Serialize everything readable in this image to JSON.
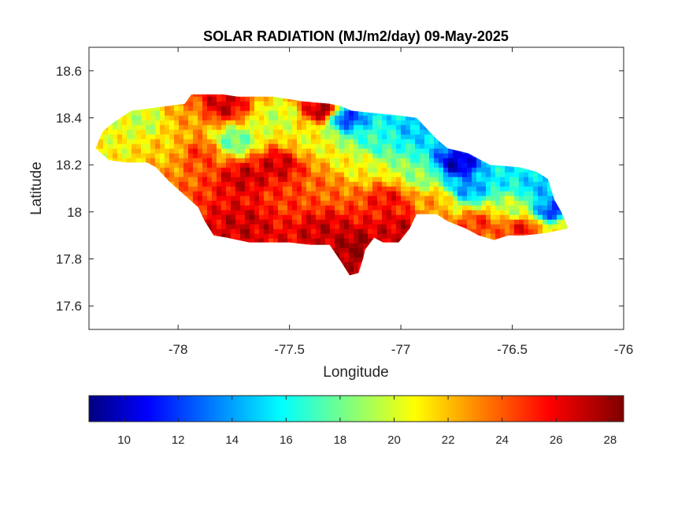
{
  "chart_data": {
    "type": "heatmap",
    "title": "SOLAR RADIATION (MJ/m2/day) 09-May-2025",
    "xlabel": "Longitude",
    "ylabel": "Latitude",
    "xlim": [
      -78.4,
      -76
    ],
    "ylim": [
      17.5,
      18.7
    ],
    "xticks": [
      -78,
      -77.5,
      -77,
      -76.5,
      -76
    ],
    "xtick_labels": [
      "-78",
      "-77.5",
      "-77",
      "-76.5",
      "-76"
    ],
    "yticks": [
      18.6,
      18.4,
      18.2,
      18,
      17.8,
      17.6
    ],
    "ytick_labels": [
      "18.6",
      "18.4",
      "18.2",
      "18",
      "17.8",
      "17.6"
    ],
    "grid": false,
    "colormap": "jet",
    "clim": [
      8.7,
      28.5
    ],
    "colorbar": {
      "location": "southoutside",
      "ticks": [
        10,
        12,
        14,
        16,
        18,
        20,
        22,
        24,
        26,
        28
      ],
      "tick_labels": [
        "10",
        "12",
        "14",
        "16",
        "18",
        "20",
        "22",
        "24",
        "26",
        "28"
      ]
    },
    "outline": [
      [
        -78.37,
        18.27
      ],
      [
        -78.34,
        18.34
      ],
      [
        -78.29,
        18.38
      ],
      [
        -78.21,
        18.43
      ],
      [
        -78.13,
        18.44
      ],
      [
        -78.05,
        18.45
      ],
      [
        -77.97,
        18.46
      ],
      [
        -77.94,
        18.5
      ],
      [
        -77.8,
        18.5
      ],
      [
        -77.73,
        18.49
      ],
      [
        -77.57,
        18.49
      ],
      [
        -77.44,
        18.47
      ],
      [
        -77.32,
        18.46
      ],
      [
        -77.27,
        18.45
      ],
      [
        -77.22,
        18.43
      ],
      [
        -77.12,
        18.42
      ],
      [
        -77.01,
        18.41
      ],
      [
        -76.93,
        18.4
      ],
      [
        -76.89,
        18.36
      ],
      [
        -76.84,
        18.31
      ],
      [
        -76.79,
        18.27
      ],
      [
        -76.7,
        18.25
      ],
      [
        -76.6,
        18.2
      ],
      [
        -76.47,
        18.19
      ],
      [
        -76.39,
        18.17
      ],
      [
        -76.34,
        18.14
      ],
      [
        -76.31,
        18.05
      ],
      [
        -76.28,
        18.0
      ],
      [
        -76.25,
        17.93
      ],
      [
        -76.35,
        17.91
      ],
      [
        -76.45,
        17.9
      ],
      [
        -76.52,
        17.9
      ],
      [
        -76.58,
        17.88
      ],
      [
        -76.65,
        17.9
      ],
      [
        -76.71,
        17.93
      ],
      [
        -76.79,
        17.96
      ],
      [
        -76.84,
        17.99
      ],
      [
        -76.93,
        17.99
      ],
      [
        -76.96,
        17.93
      ],
      [
        -77.01,
        17.87
      ],
      [
        -77.08,
        17.87
      ],
      [
        -77.12,
        17.89
      ],
      [
        -77.16,
        17.84
      ],
      [
        -77.17,
        17.8
      ],
      [
        -77.19,
        17.74
      ],
      [
        -77.23,
        17.73
      ],
      [
        -77.27,
        17.79
      ],
      [
        -77.32,
        17.86
      ],
      [
        -77.41,
        17.86
      ],
      [
        -77.5,
        17.87
      ],
      [
        -77.59,
        17.87
      ],
      [
        -77.68,
        17.87
      ],
      [
        -77.78,
        17.89
      ],
      [
        -77.84,
        17.9
      ],
      [
        -77.88,
        17.96
      ],
      [
        -77.91,
        18.02
      ],
      [
        -77.97,
        18.07
      ],
      [
        -78.04,
        18.13
      ],
      [
        -78.1,
        18.19
      ],
      [
        -78.14,
        18.21
      ],
      [
        -78.23,
        18.21
      ],
      [
        -78.31,
        18.22
      ]
    ],
    "value_centers": [
      {
        "lon": -78.3,
        "lat": 18.3,
        "value": 21
      },
      {
        "lon": -78.15,
        "lat": 18.38,
        "value": 20
      },
      {
        "lon": -78.05,
        "lat": 18.28,
        "value": 22
      },
      {
        "lon": -77.95,
        "lat": 18.4,
        "value": 23
      },
      {
        "lon": -77.9,
        "lat": 18.25,
        "value": 25
      },
      {
        "lon": -77.8,
        "lat": 18.45,
        "value": 27
      },
      {
        "lon": -77.75,
        "lat": 18.3,
        "value": 18
      },
      {
        "lon": -77.7,
        "lat": 18.15,
        "value": 27
      },
      {
        "lon": -77.7,
        "lat": 17.95,
        "value": 27
      },
      {
        "lon": -77.55,
        "lat": 18.4,
        "value": 20
      },
      {
        "lon": -77.55,
        "lat": 18.2,
        "value": 27
      },
      {
        "lon": -77.5,
        "lat": 18.05,
        "value": 25
      },
      {
        "lon": -77.4,
        "lat": 18.3,
        "value": 21
      },
      {
        "lon": -77.35,
        "lat": 18.43,
        "value": 28
      },
      {
        "lon": -77.35,
        "lat": 18.1,
        "value": 24
      },
      {
        "lon": -77.35,
        "lat": 17.92,
        "value": 27
      },
      {
        "lon": -77.25,
        "lat": 18.4,
        "value": 12
      },
      {
        "lon": -77.2,
        "lat": 18.2,
        "value": 21
      },
      {
        "lon": -77.2,
        "lat": 17.85,
        "value": 28
      },
      {
        "lon": -77.1,
        "lat": 18.3,
        "value": 17
      },
      {
        "lon": -77.05,
        "lat": 18.05,
        "value": 26
      },
      {
        "lon": -77.0,
        "lat": 17.93,
        "value": 27
      },
      {
        "lon": -76.95,
        "lat": 18.35,
        "value": 15
      },
      {
        "lon": -76.9,
        "lat": 18.15,
        "value": 19
      },
      {
        "lon": -76.85,
        "lat": 18.05,
        "value": 23
      },
      {
        "lon": -76.75,
        "lat": 18.2,
        "value": 10
      },
      {
        "lon": -76.7,
        "lat": 18.1,
        "value": 14
      },
      {
        "lon": -76.65,
        "lat": 17.95,
        "value": 25
      },
      {
        "lon": -76.55,
        "lat": 18.15,
        "value": 16
      },
      {
        "lon": -76.5,
        "lat": 18.02,
        "value": 20
      },
      {
        "lon": -76.45,
        "lat": 17.93,
        "value": 26
      },
      {
        "lon": -76.38,
        "lat": 18.1,
        "value": 15
      },
      {
        "lon": -76.32,
        "lat": 18.0,
        "value": 12
      },
      {
        "lon": -76.28,
        "lat": 17.93,
        "value": 21
      }
    ]
  }
}
